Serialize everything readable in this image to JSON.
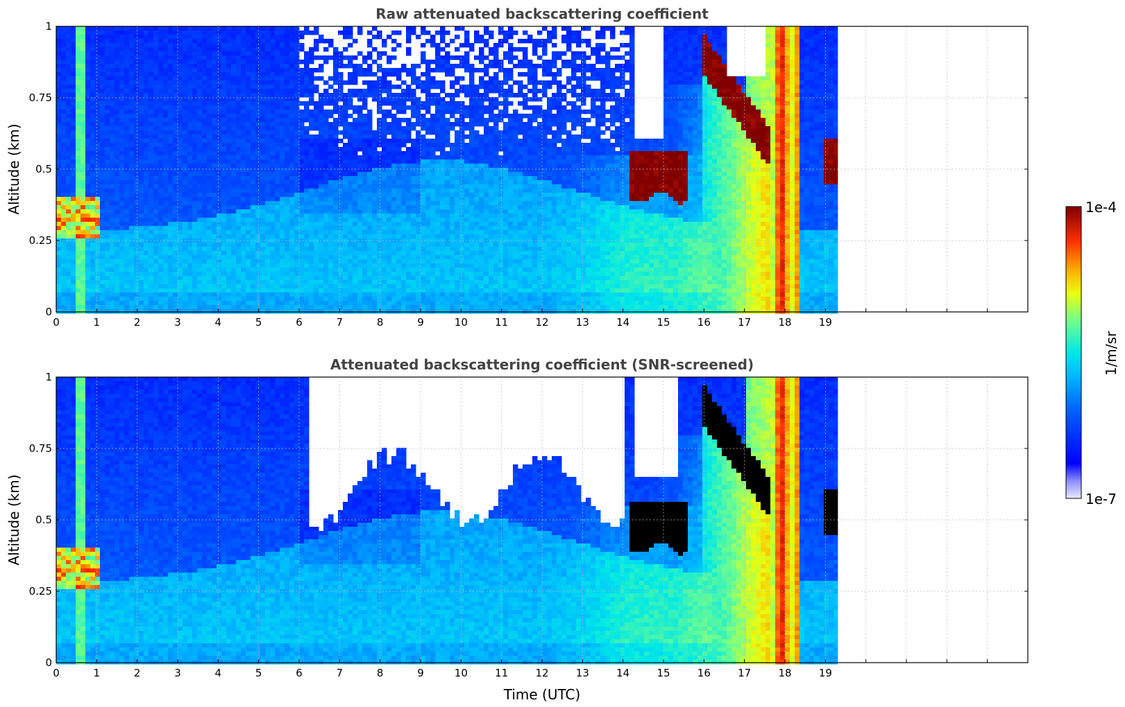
{
  "chart_data": [
    {
      "type": "heatmap",
      "title": "Raw attenuated backscattering coefficient",
      "xlabel": "",
      "ylabel": "Altitude (km)",
      "xlim": [
        0,
        24
      ],
      "ylim": [
        0,
        1
      ],
      "data_x_extent": [
        0,
        19.3
      ],
      "x_ticks": [
        "0",
        "1",
        "2",
        "3",
        "4",
        "5",
        "6",
        "7",
        "8",
        "9",
        "10",
        "11",
        "12",
        "13",
        "14",
        "15",
        "16",
        "17",
        "18",
        "19"
      ],
      "y_ticks": [
        "0",
        "0.25",
        "0.5",
        "0.75",
        "1"
      ],
      "y_tick_values": [
        0,
        0.25,
        0.5,
        0.75,
        1
      ],
      "grid": true,
      "screened": false,
      "colorscale": "jet",
      "clim": [
        "1e-7",
        "1e-4"
      ],
      "log_scale": true,
      "features": [
        {
          "x": [
            0,
            1.1
          ],
          "y": [
            0.25,
            0.4
          ],
          "value": "~5e-6",
          "desc": "low cloud/aerosol layer"
        },
        {
          "x": [
            14.2,
            15.6
          ],
          "y": [
            0.4,
            0.57
          ],
          "value": "~1e-4",
          "desc": "cloud layer"
        },
        {
          "x": [
            16.0,
            17.7
          ],
          "y": [
            0.55,
            0.95
          ],
          "value": "~1e-4",
          "desc": "descending cloud layer"
        },
        {
          "x": [
            17.7,
            18.4
          ],
          "y": [
            0,
            1
          ],
          "value": "~5e-5",
          "desc": "precipitation column"
        },
        {
          "x": [
            19.0,
            19.3
          ],
          "y": [
            0.45,
            0.6
          ],
          "value": "~1e-4",
          "desc": "cloud layer"
        }
      ]
    },
    {
      "type": "heatmap",
      "title": "Attenuated backscattering coefficient (SNR-screened)",
      "xlabel": "Time (UTC)",
      "ylabel": "Altitude (km)",
      "xlim": [
        0,
        24
      ],
      "ylim": [
        0,
        1
      ],
      "data_x_extent": [
        0,
        19.3
      ],
      "x_ticks": [
        "0",
        "1",
        "2",
        "3",
        "4",
        "5",
        "6",
        "7",
        "8",
        "9",
        "10",
        "11",
        "12",
        "13",
        "14",
        "15",
        "16",
        "17",
        "18",
        "19"
      ],
      "y_ticks": [
        "0",
        "0.25",
        "0.5",
        "0.75",
        "1"
      ],
      "y_tick_values": [
        0,
        0.25,
        0.5,
        0.75,
        1
      ],
      "grid": true,
      "screened": true,
      "colorscale": "jet",
      "clim": [
        "1e-7",
        "1e-4"
      ],
      "log_scale": true,
      "features": [
        {
          "x": [
            14.2,
            15.6
          ],
          "y": [
            0.38,
            0.57
          ],
          "value": "saturated",
          "desc": "cloud layer"
        },
        {
          "x": [
            16.0,
            17.7
          ],
          "y": [
            0.55,
            0.95
          ],
          "value": "saturated",
          "desc": "descending cloud layer"
        },
        {
          "x": [
            17.7,
            18.4
          ],
          "y": [
            0,
            1
          ],
          "value": "~5e-5",
          "desc": "precipitation column"
        }
      ]
    }
  ],
  "colorbar": {
    "label": "1/m/sr",
    "max_label": "1e-4",
    "min_label": "1e-7"
  },
  "colors": {
    "title": "#444444",
    "grid": "#bbbbbb",
    "saturated": "#000000",
    "missing": "#ffffff"
  }
}
